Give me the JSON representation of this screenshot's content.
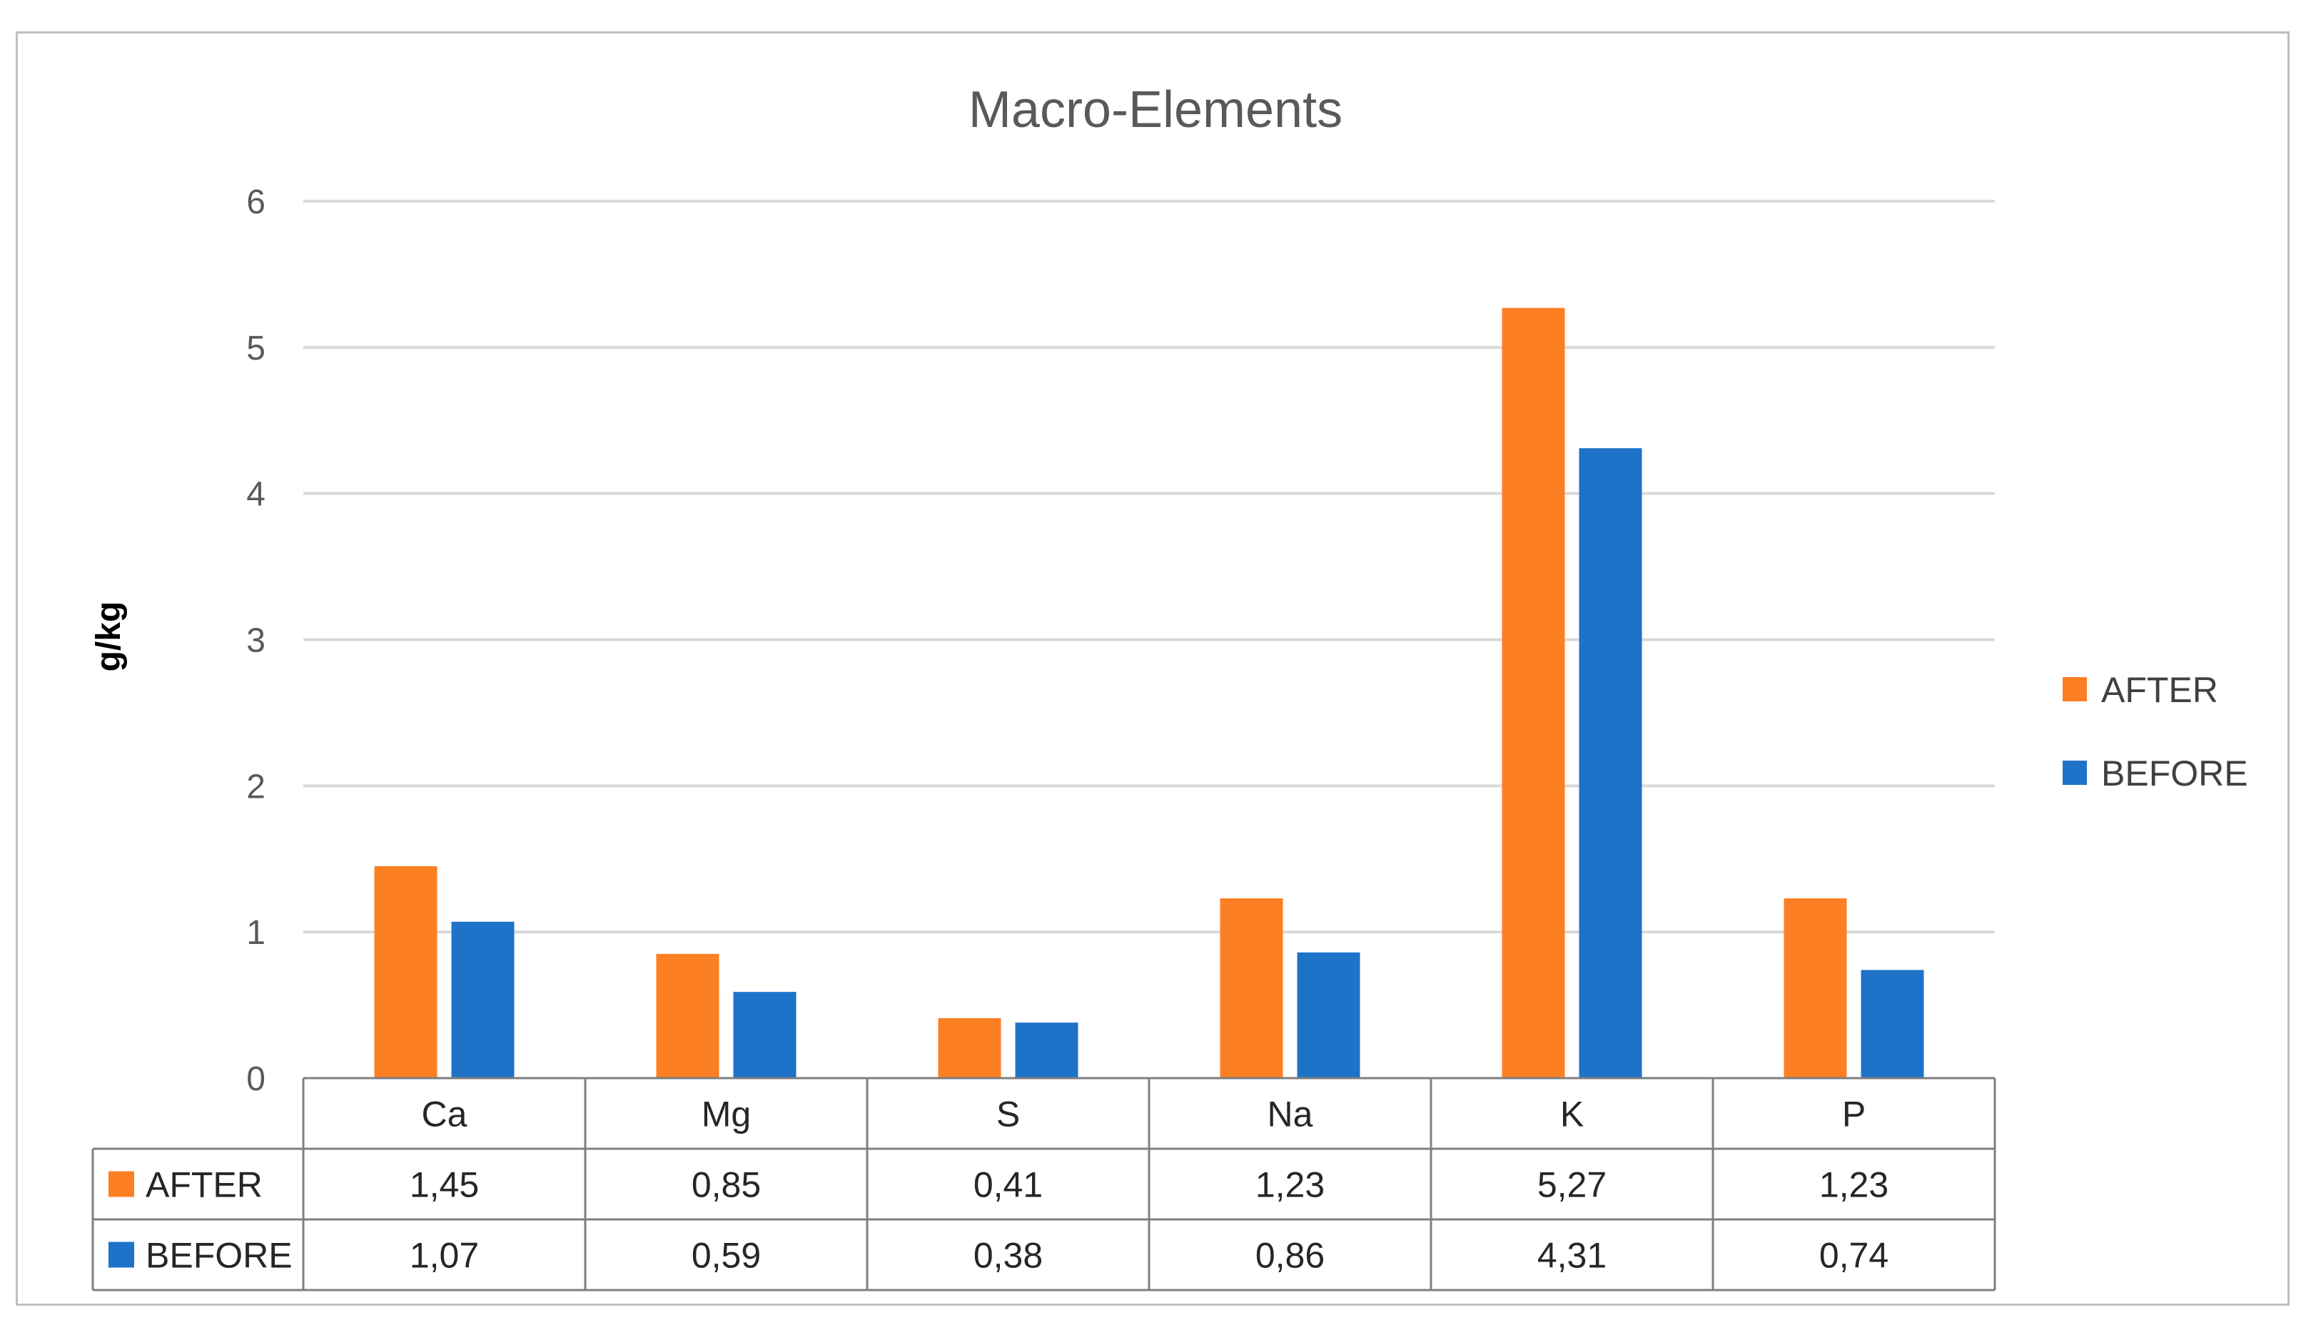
{
  "chart_data": {
    "type": "bar",
    "title": "Macro-Elements",
    "xlabel": "",
    "ylabel": "g/kg",
    "ylim": [
      0,
      6
    ],
    "yticks": [
      "0",
      "1",
      "2",
      "3",
      "4",
      "5",
      "6"
    ],
    "grid": true,
    "legend_position": "right",
    "data_table": true,
    "categories": [
      "Ca",
      "Mg",
      "S",
      "Na",
      "K",
      "P"
    ],
    "series": [
      {
        "name": "AFTER",
        "color": "#fd7f23",
        "values": [
          1.45,
          0.85,
          0.41,
          1.23,
          5.27,
          1.23
        ],
        "labels": [
          "1,45",
          "0,85",
          "0,41",
          "1,23",
          "5,27",
          "1,23"
        ]
      },
      {
        "name": "BEFORE",
        "color": "#1e73c8",
        "values": [
          1.07,
          0.59,
          0.38,
          0.86,
          4.31,
          0.74
        ],
        "labels": [
          "1,07",
          "0,59",
          "0,38",
          "0,86",
          "4,31",
          "0,74"
        ]
      }
    ]
  }
}
